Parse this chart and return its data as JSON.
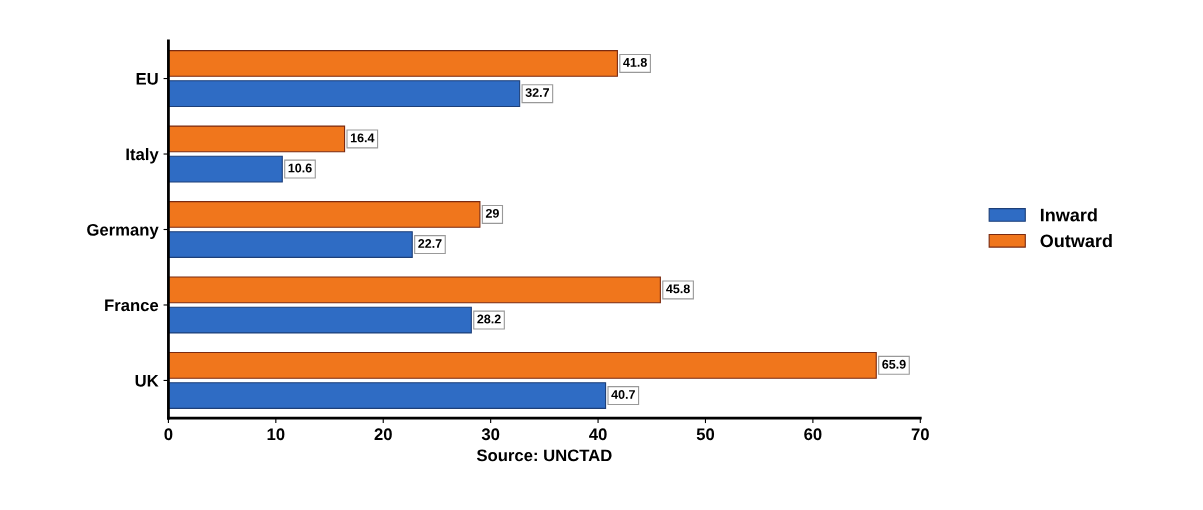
{
  "chart_data": {
    "type": "bar",
    "orientation": "horizontal",
    "xlabel": "Source: UNCTAD",
    "categories": [
      "EU",
      "Italy",
      "Germany",
      "France",
      "UK"
    ],
    "series": [
      {
        "name": "Inward",
        "color": "#2f6cc4",
        "values": [
          32.7,
          10.6,
          22.7,
          28.2,
          40.7
        ]
      },
      {
        "name": "Outward",
        "color": "#f0761c",
        "values": [
          41.8,
          16.4,
          29,
          45.8,
          65.9
        ]
      }
    ],
    "xlim": [
      0,
      70
    ],
    "xticks": [
      0,
      10,
      20,
      30,
      40,
      50,
      60,
      70
    ],
    "data_labels": true,
    "grid": false,
    "legend": "right"
  }
}
